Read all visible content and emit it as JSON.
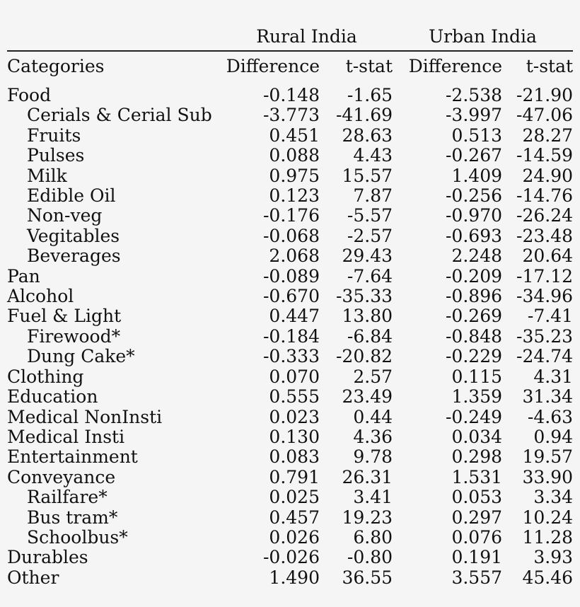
{
  "table": {
    "groups": {
      "rural": "Rural India",
      "urban": "Urban India"
    },
    "headers": {
      "category": "Categories",
      "rural_diff": "Difference",
      "rural_t": "t-stat",
      "urban_diff": "Difference",
      "urban_t": "t-stat"
    },
    "rows": [
      {
        "category": "Food",
        "sub": false,
        "rural_diff": "-0.148",
        "rural_t": "-1.65",
        "urban_diff": "-2.538",
        "urban_t": "-21.90"
      },
      {
        "category": "Cerials & Cerial Sub",
        "sub": true,
        "rural_diff": "-3.773",
        "rural_t": "-41.69",
        "urban_diff": "-3.997",
        "urban_t": "-47.06"
      },
      {
        "category": "Fruits",
        "sub": true,
        "rural_diff": "0.451",
        "rural_t": "28.63",
        "urban_diff": "0.513",
        "urban_t": "28.27"
      },
      {
        "category": "Pulses",
        "sub": true,
        "rural_diff": "0.088",
        "rural_t": "4.43",
        "urban_diff": "-0.267",
        "urban_t": "-14.59"
      },
      {
        "category": "Milk",
        "sub": true,
        "rural_diff": "0.975",
        "rural_t": "15.57",
        "urban_diff": "1.409",
        "urban_t": "24.90"
      },
      {
        "category": "Edible Oil",
        "sub": true,
        "rural_diff": "0.123",
        "rural_t": "7.87",
        "urban_diff": "-0.256",
        "urban_t": "-14.76"
      },
      {
        "category": "Non-veg",
        "sub": true,
        "rural_diff": "-0.176",
        "rural_t": "-5.57",
        "urban_diff": "-0.970",
        "urban_t": "-26.24"
      },
      {
        "category": "Vegitables",
        "sub": true,
        "rural_diff": "-0.068",
        "rural_t": "-2.57",
        "urban_diff": "-0.693",
        "urban_t": "-23.48"
      },
      {
        "category": "Beverages",
        "sub": true,
        "rural_diff": "2.068",
        "rural_t": "29.43",
        "urban_diff": "2.248",
        "urban_t": "20.64"
      },
      {
        "category": "Pan",
        "sub": false,
        "rural_diff": "-0.089",
        "rural_t": "-7.64",
        "urban_diff": "-0.209",
        "urban_t": "-17.12"
      },
      {
        "category": "Alcohol",
        "sub": false,
        "rural_diff": "-0.670",
        "rural_t": "-35.33",
        "urban_diff": "-0.896",
        "urban_t": "-34.96"
      },
      {
        "category": "Fuel & Light",
        "sub": false,
        "rural_diff": "0.447",
        "rural_t": "13.80",
        "urban_diff": "-0.269",
        "urban_t": "-7.41"
      },
      {
        "category": "Firewood*",
        "sub": true,
        "rural_diff": "-0.184",
        "rural_t": "-6.84",
        "urban_diff": "-0.848",
        "urban_t": "-35.23"
      },
      {
        "category": "Dung Cake*",
        "sub": true,
        "rural_diff": "-0.333",
        "rural_t": "-20.82",
        "urban_diff": "-0.229",
        "urban_t": "-24.74"
      },
      {
        "category": "Clothing",
        "sub": false,
        "rural_diff": "0.070",
        "rural_t": "2.57",
        "urban_diff": "0.115",
        "urban_t": "4.31"
      },
      {
        "category": "Education",
        "sub": false,
        "rural_diff": "0.555",
        "rural_t": "23.49",
        "urban_diff": "1.359",
        "urban_t": "31.34"
      },
      {
        "category": "Medical NonInsti",
        "sub": false,
        "rural_diff": "0.023",
        "rural_t": "0.44",
        "urban_diff": "-0.249",
        "urban_t": "-4.63"
      },
      {
        "category": "Medical Insti",
        "sub": false,
        "rural_diff": "0.130",
        "rural_t": "4.36",
        "urban_diff": "0.034",
        "urban_t": "0.94"
      },
      {
        "category": "Entertainment",
        "sub": false,
        "rural_diff": "0.083",
        "rural_t": "9.78",
        "urban_diff": "0.298",
        "urban_t": "19.57"
      },
      {
        "category": "Conveyance",
        "sub": false,
        "rural_diff": "0.791",
        "rural_t": "26.31",
        "urban_diff": "1.531",
        "urban_t": "33.90"
      },
      {
        "category": "Railfare*",
        "sub": true,
        "rural_diff": "0.025",
        "rural_t": "3.41",
        "urban_diff": "0.053",
        "urban_t": "3.34"
      },
      {
        "category": "Bus tram*",
        "sub": true,
        "rural_diff": "0.457",
        "rural_t": "19.23",
        "urban_diff": "0.297",
        "urban_t": "10.24"
      },
      {
        "category": "Schoolbus*",
        "sub": true,
        "rural_diff": "0.026",
        "rural_t": "6.80",
        "urban_diff": "0.076",
        "urban_t": "11.28"
      },
      {
        "category": "Durables",
        "sub": false,
        "rural_diff": "-0.026",
        "rural_t": "-0.80",
        "urban_diff": "0.191",
        "urban_t": "3.93"
      },
      {
        "category": "Other",
        "sub": false,
        "rural_diff": "1.490",
        "rural_t": "36.55",
        "urban_diff": "3.557",
        "urban_t": "45.46"
      }
    ]
  }
}
